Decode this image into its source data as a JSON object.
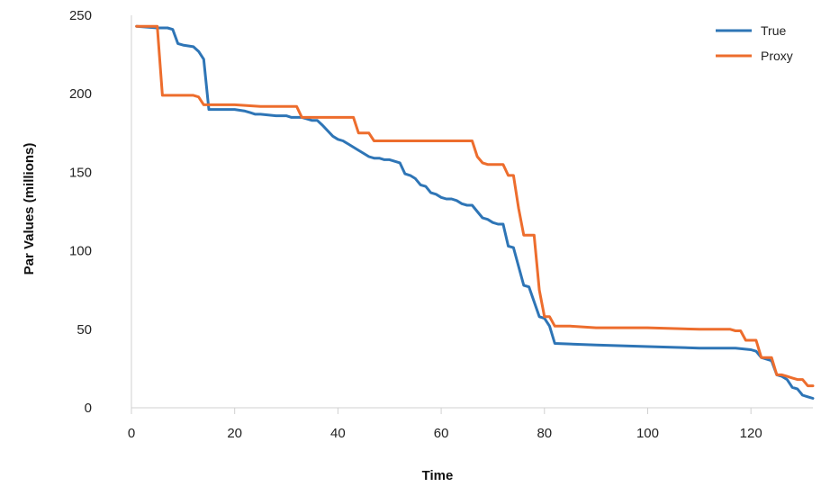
{
  "chart_data": {
    "type": "line",
    "title": "",
    "xlabel": "Time",
    "ylabel": "Par Values (millions)",
    "xlim": [
      0,
      132
    ],
    "ylim": [
      0,
      250
    ],
    "xticks": [
      0,
      20,
      40,
      60,
      80,
      100,
      120
    ],
    "yticks": [
      0,
      50,
      100,
      150,
      200,
      250
    ],
    "grid": false,
    "legend": "top-right",
    "series": [
      {
        "name": "True",
        "color": "#2e75b6",
        "x": [
          1,
          5,
          7,
          8,
          9,
          10,
          12,
          13,
          14,
          15,
          16,
          20,
          22,
          23,
          24,
          25,
          28,
          30,
          31,
          33,
          34,
          35,
          36,
          37,
          39,
          40,
          41,
          42,
          43,
          44,
          45,
          46,
          47,
          48,
          49,
          50,
          51,
          52,
          53,
          54,
          55,
          56,
          57,
          58,
          59,
          60,
          61,
          62,
          63,
          64,
          65,
          66,
          67,
          68,
          69,
          70,
          71,
          72,
          73,
          74,
          76,
          77,
          79,
          80,
          81,
          82,
          90,
          100,
          110,
          117,
          120,
          121,
          122,
          123,
          124,
          125,
          126,
          127,
          128,
          129,
          130,
          131,
          132
        ],
        "y": [
          243,
          242,
          242,
          241,
          232,
          231,
          230,
          227,
          222,
          190,
          190,
          190,
          189,
          188,
          187,
          187,
          186,
          186,
          185,
          185,
          184,
          183,
          183,
          180,
          173,
          171,
          170,
          168,
          166,
          164,
          162,
          160,
          159,
          159,
          158,
          158,
          157,
          156,
          149,
          148,
          146,
          142,
          141,
          137,
          136,
          134,
          133,
          133,
          132,
          130,
          129,
          129,
          125,
          121,
          120,
          118,
          117,
          117,
          103,
          102,
          78,
          77,
          58,
          57,
          52,
          41,
          40,
          39,
          38,
          38,
          37,
          36,
          32,
          31,
          30,
          21,
          20,
          18,
          13,
          12,
          8,
          7,
          6
        ]
      },
      {
        "name": "Proxy",
        "color": "#ed6d2d",
        "x": [
          1,
          5,
          6,
          12,
          13,
          14,
          15,
          20,
          25,
          32,
          33,
          36,
          43,
          44,
          45,
          46,
          47,
          50,
          60,
          66,
          67,
          68,
          69,
          70,
          72,
          73,
          74,
          75,
          76,
          78,
          79,
          80,
          81,
          82,
          85,
          90,
          100,
          110,
          115,
          116,
          117,
          118,
          119,
          120,
          121,
          122,
          123,
          124,
          125,
          126,
          127,
          128,
          129,
          130,
          131,
          132
        ],
        "y": [
          243,
          243,
          199,
          199,
          198,
          193,
          193,
          193,
          192,
          192,
          185,
          185,
          185,
          175,
          175,
          175,
          170,
          170,
          170,
          170,
          160,
          156,
          155,
          155,
          155,
          148,
          148,
          127,
          110,
          110,
          75,
          58,
          58,
          52,
          52,
          51,
          51,
          50,
          50,
          50,
          49,
          49,
          43,
          43,
          43,
          32,
          32,
          32,
          21,
          21,
          20,
          19,
          18,
          18,
          14,
          14
        ]
      }
    ]
  }
}
